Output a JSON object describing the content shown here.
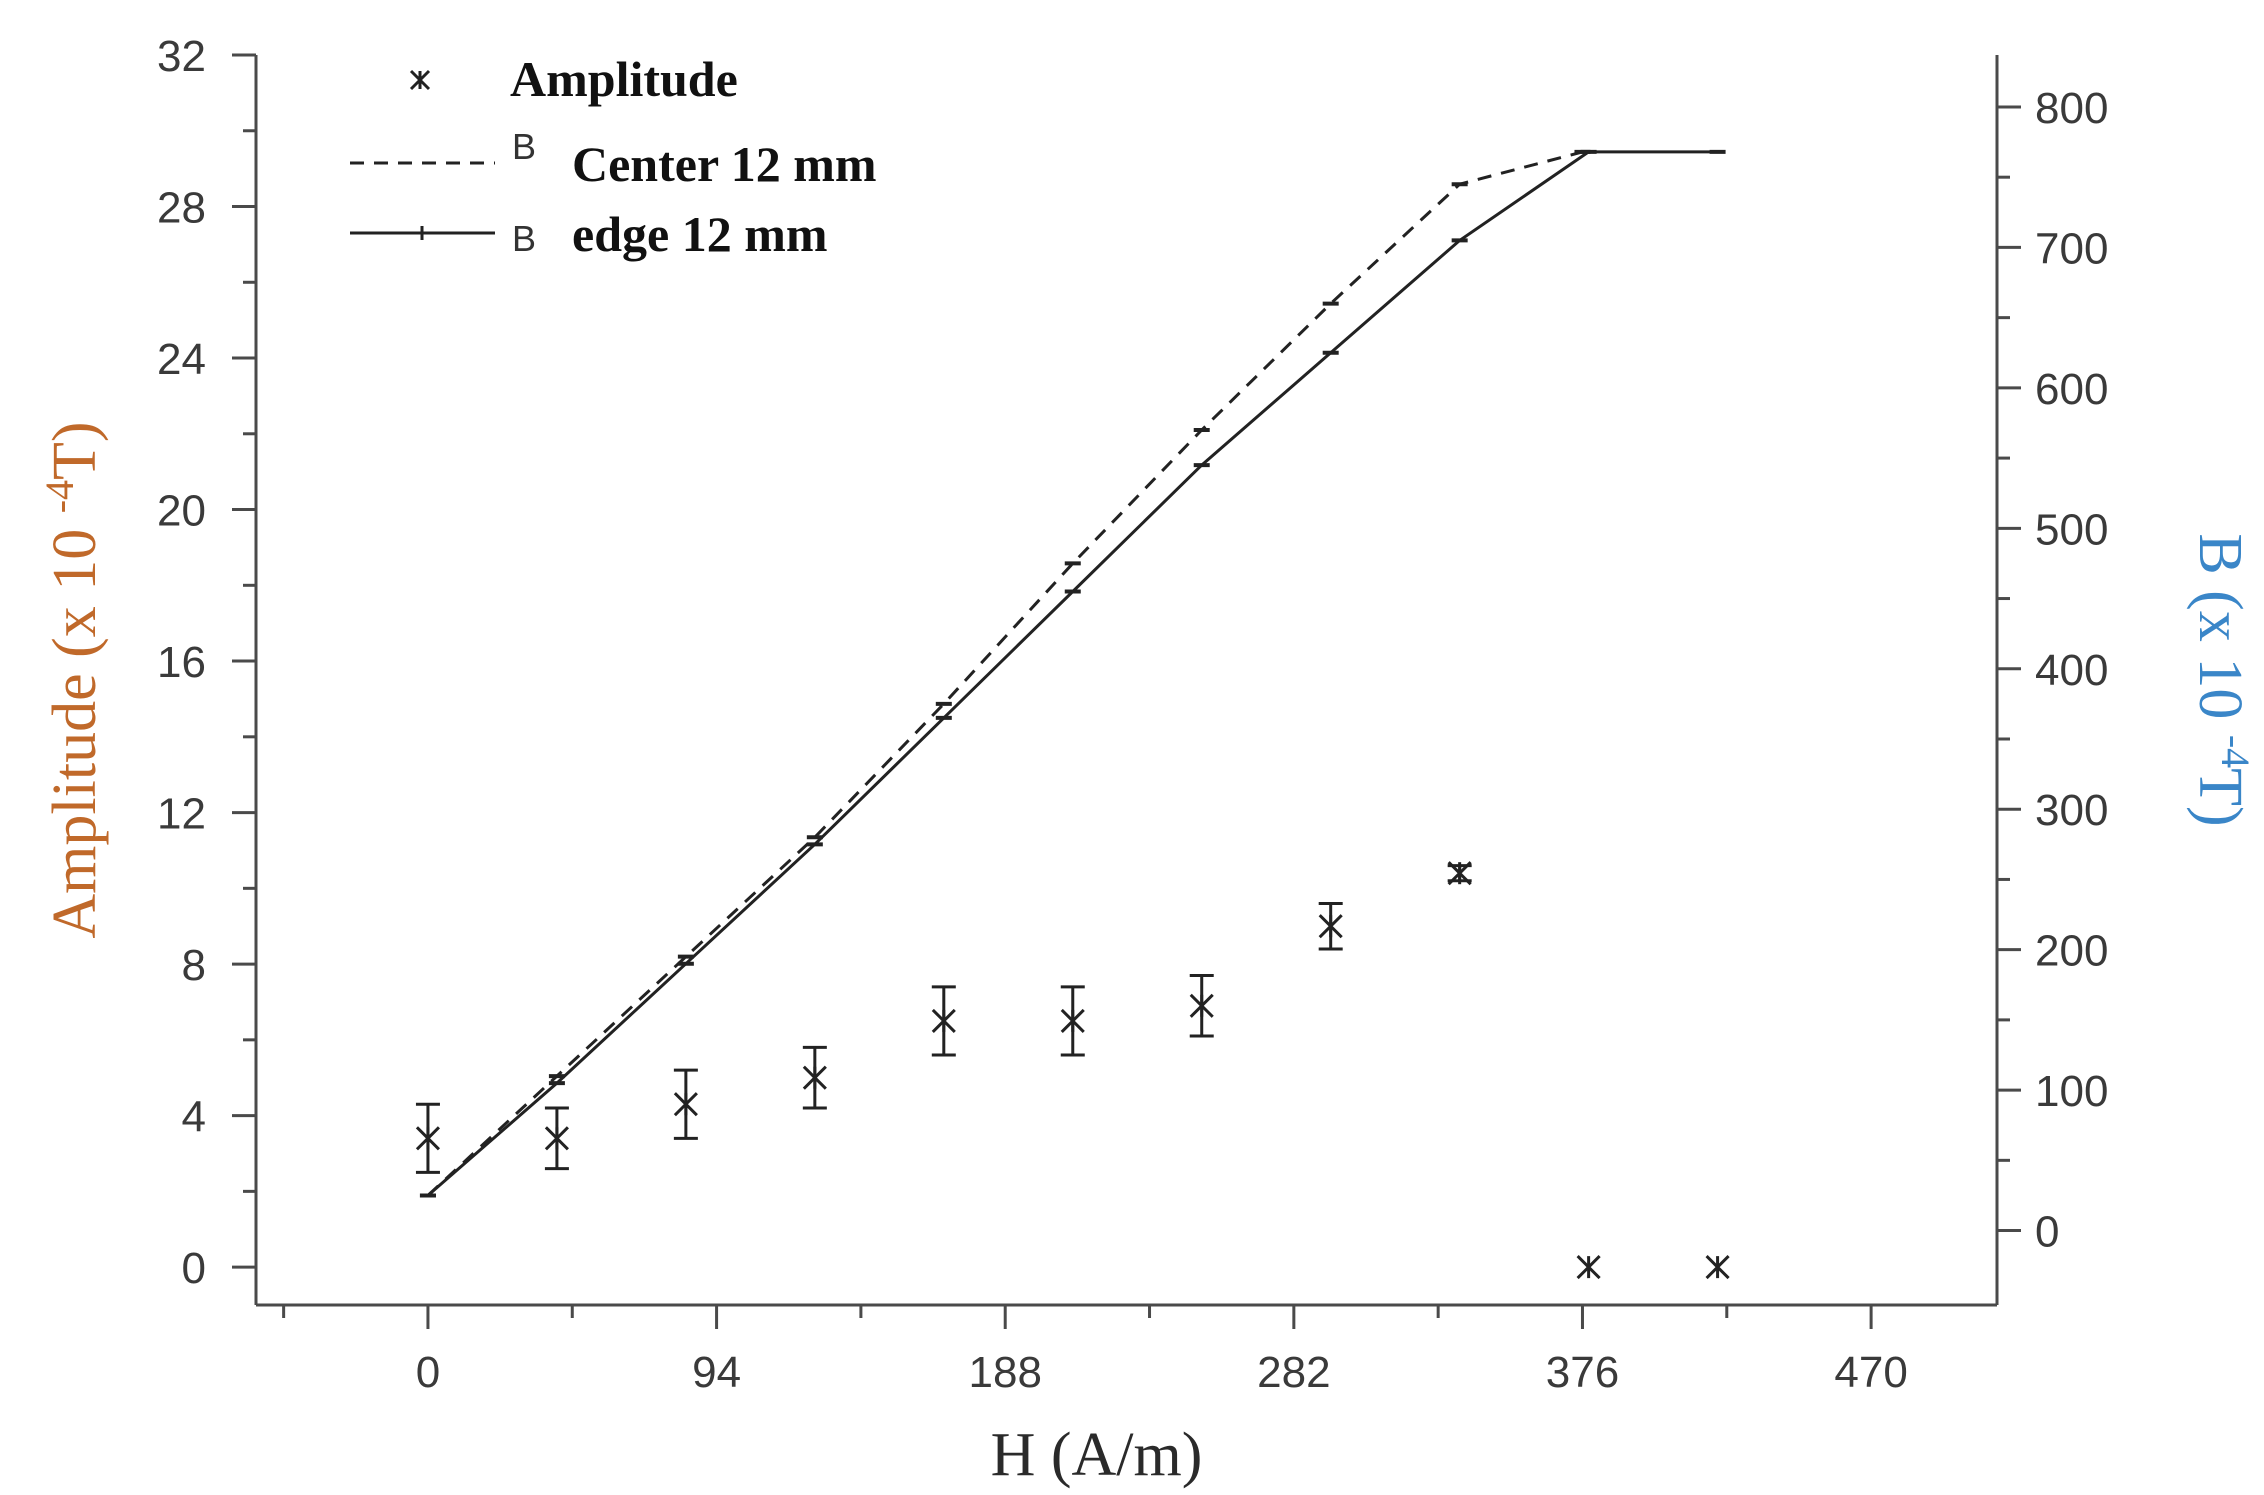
{
  "chart_data": {
    "type": "scatter",
    "x": {
      "label": "H (A/m)",
      "min": -56,
      "max": 511,
      "major_ticks": [
        0,
        94,
        188,
        282,
        376,
        470
      ],
      "tick_labels": [
        "0",
        "94",
        "188",
        "282",
        "376",
        "470"
      ]
    },
    "y_left": {
      "label": "Amplitude (x 10",
      "label_sup": "-4",
      "label_tail": "T)",
      "min": -1,
      "max": 32,
      "ticks": [
        0,
        4,
        8,
        12,
        16,
        20,
        24,
        28,
        32
      ],
      "tick_labels": [
        "0",
        "4",
        "8",
        "12",
        "16",
        "20",
        "24",
        "28",
        "32"
      ]
    },
    "y_right": {
      "label": "B (x 10",
      "label_sup": "-4",
      "label_tail": "T)",
      "min": -53,
      "max": 837,
      "ticks": [
        0,
        100,
        200,
        300,
        400,
        500,
        600,
        700,
        800
      ],
      "tick_labels": [
        "0",
        "100",
        "200",
        "300",
        "400",
        "500",
        "600",
        "700",
        "800"
      ]
    },
    "legend": {
      "placement": "top-left",
      "items": [
        {
          "symbol": "",
          "label": "Amplitude"
        },
        {
          "symbol": "B",
          "label": "Center 12 mm"
        },
        {
          "symbol": "B",
          "label": "edge 12 mm"
        }
      ]
    },
    "series": [
      {
        "name": "Amplitude",
        "axis": "left",
        "style": "markers",
        "points": [
          {
            "x": 0,
            "y": 3.4,
            "err": 0.9
          },
          {
            "x": 42,
            "y": 3.4,
            "err": 0.8
          },
          {
            "x": 84,
            "y": 4.3,
            "err": 0.9
          },
          {
            "x": 126,
            "y": 5.0,
            "err": 0.8
          },
          {
            "x": 168,
            "y": 6.5,
            "err": 0.9
          },
          {
            "x": 210,
            "y": 6.5,
            "err": 0.9
          },
          {
            "x": 252,
            "y": 6.9,
            "err": 0.8
          },
          {
            "x": 294,
            "y": 9.0,
            "err": 0.6
          },
          {
            "x": 336,
            "y": 10.4,
            "err": 0.2
          },
          {
            "x": 378,
            "y": 0,
            "err": 0
          },
          {
            "x": 420,
            "y": 0,
            "err": 0
          }
        ]
      },
      {
        "name": "B Center 12 mm",
        "axis": "right",
        "style": "dashed",
        "points": [
          {
            "x": 0,
            "y": 25
          },
          {
            "x": 42,
            "y": 110
          },
          {
            "x": 84,
            "y": 195
          },
          {
            "x": 126,
            "y": 280
          },
          {
            "x": 168,
            "y": 375
          },
          {
            "x": 210,
            "y": 475
          },
          {
            "x": 252,
            "y": 570
          },
          {
            "x": 294,
            "y": 660
          },
          {
            "x": 336,
            "y": 745
          },
          {
            "x": 376,
            "y": 768
          }
        ]
      },
      {
        "name": "B edge 12 mm",
        "axis": "right",
        "style": "solid",
        "points": [
          {
            "x": 0,
            "y": 25
          },
          {
            "x": 42,
            "y": 105
          },
          {
            "x": 84,
            "y": 190
          },
          {
            "x": 126,
            "y": 275
          },
          {
            "x": 168,
            "y": 365
          },
          {
            "x": 210,
            "y": 455
          },
          {
            "x": 252,
            "y": 545
          },
          {
            "x": 294,
            "y": 625
          },
          {
            "x": 336,
            "y": 705
          },
          {
            "x": 378,
            "y": 768
          },
          {
            "x": 420,
            "y": 768
          }
        ]
      }
    ]
  },
  "colors": {
    "axis": "#4a4a4a",
    "left_title": "#c0692a",
    "right_title": "#3a86c8",
    "series": "#222222",
    "ticks_text": "#3a3a3a"
  }
}
